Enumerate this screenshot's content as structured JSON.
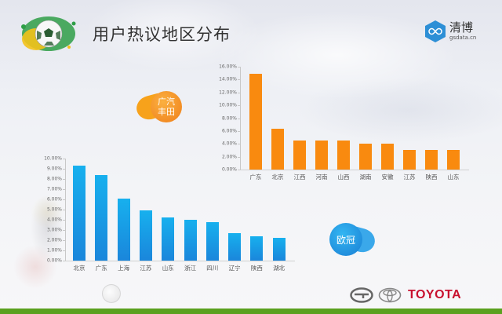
{
  "header": {
    "title": "用户热议地区分布",
    "brand_name": "清博",
    "brand_sub": "gsdata.cn"
  },
  "bubbles": {
    "gac": "广汽丰田",
    "eu": "欧冠"
  },
  "footer": {
    "toyota": "TOYOTA"
  },
  "colors": {
    "orange": "#f98a0f",
    "blue_top": "#17b0ee",
    "blue_bottom": "#1a86db",
    "footer_green": "#5aa11f",
    "toyota_red": "#c8102e"
  },
  "chart_data": [
    {
      "type": "bar",
      "title": "广汽丰田",
      "categories": [
        "广东",
        "北京",
        "江西",
        "河南",
        "山西",
        "湖南",
        "安徽",
        "江苏",
        "陕西",
        "山东"
      ],
      "values": [
        14.9,
        6.3,
        4.5,
        4.5,
        4.5,
        4.0,
        4.0,
        3.0,
        3.0,
        3.0
      ],
      "yticks": [
        "0.00%",
        "2.00%",
        "4.00%",
        "6.00%",
        "8.00%",
        "10.00%",
        "12.00%",
        "14.00%",
        "16.00%"
      ],
      "ylim": [
        0,
        16
      ],
      "xlabel": "",
      "ylabel": "",
      "grid": false,
      "color": "#f98a0f"
    },
    {
      "type": "bar",
      "title": "欧冠",
      "categories": [
        "北京",
        "广东",
        "上海",
        "江苏",
        "山东",
        "浙江",
        "四川",
        "辽宁",
        "陕西",
        "湖北"
      ],
      "values": [
        9.3,
        8.4,
        6.1,
        4.9,
        4.2,
        4.0,
        3.8,
        2.7,
        2.4,
        2.2
      ],
      "yticks": [
        "0.00%",
        "1.00%",
        "2.00%",
        "3.00%",
        "4.00%",
        "5.00%",
        "6.00%",
        "7.00%",
        "8.00%",
        "9.00%",
        "10.00%"
      ],
      "ylim": [
        0,
        10
      ],
      "xlabel": "",
      "ylabel": "",
      "grid": false,
      "color": "#1a9ae4"
    }
  ]
}
